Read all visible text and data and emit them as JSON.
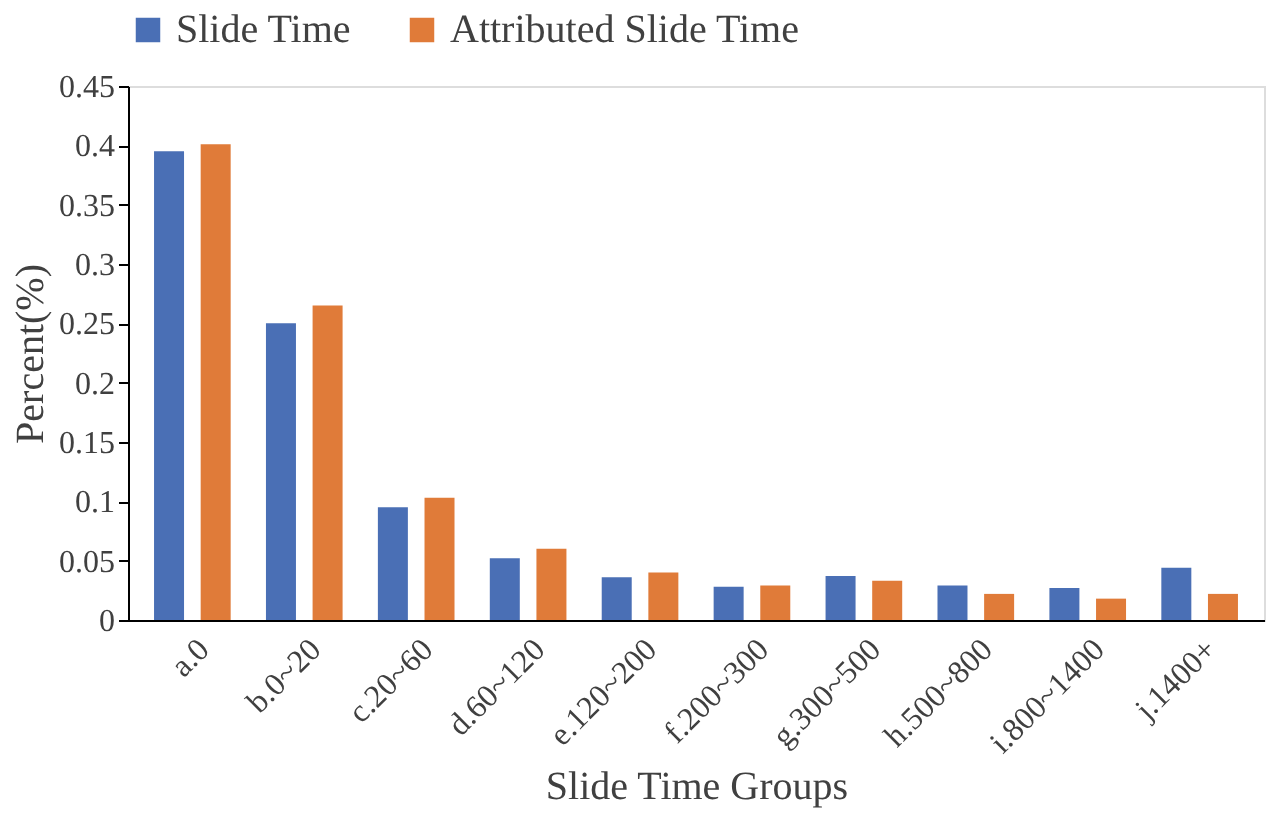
{
  "chart_data": {
    "type": "bar",
    "xlabel": "Slide Time Groups",
    "ylabel": "Percent(%)",
    "categories": [
      "a.0",
      "b.0~20",
      "c.20~60",
      "d.60~120",
      "e.120~200",
      "f.200~300",
      "g.300~500",
      "h.500~800",
      "i.800~1400",
      "j.1400+"
    ],
    "series": [
      {
        "name": "Slide Time",
        "color": "#4a6fb5",
        "values": [
          0.395,
          0.25,
          0.095,
          0.052,
          0.036,
          0.028,
          0.037,
          0.029,
          0.027,
          0.044
        ]
      },
      {
        "name": "Attributed Slide Time",
        "color": "#e07b39",
        "values": [
          0.401,
          0.265,
          0.103,
          0.06,
          0.04,
          0.029,
          0.033,
          0.022,
          0.018,
          0.022
        ]
      }
    ],
    "ylim": [
      0,
      0.45
    ],
    "yticks": [
      0,
      0.05,
      0.1,
      0.15,
      0.2,
      0.25,
      0.3,
      0.35,
      0.4,
      0.45
    ],
    "grid": false,
    "legend": "top"
  }
}
